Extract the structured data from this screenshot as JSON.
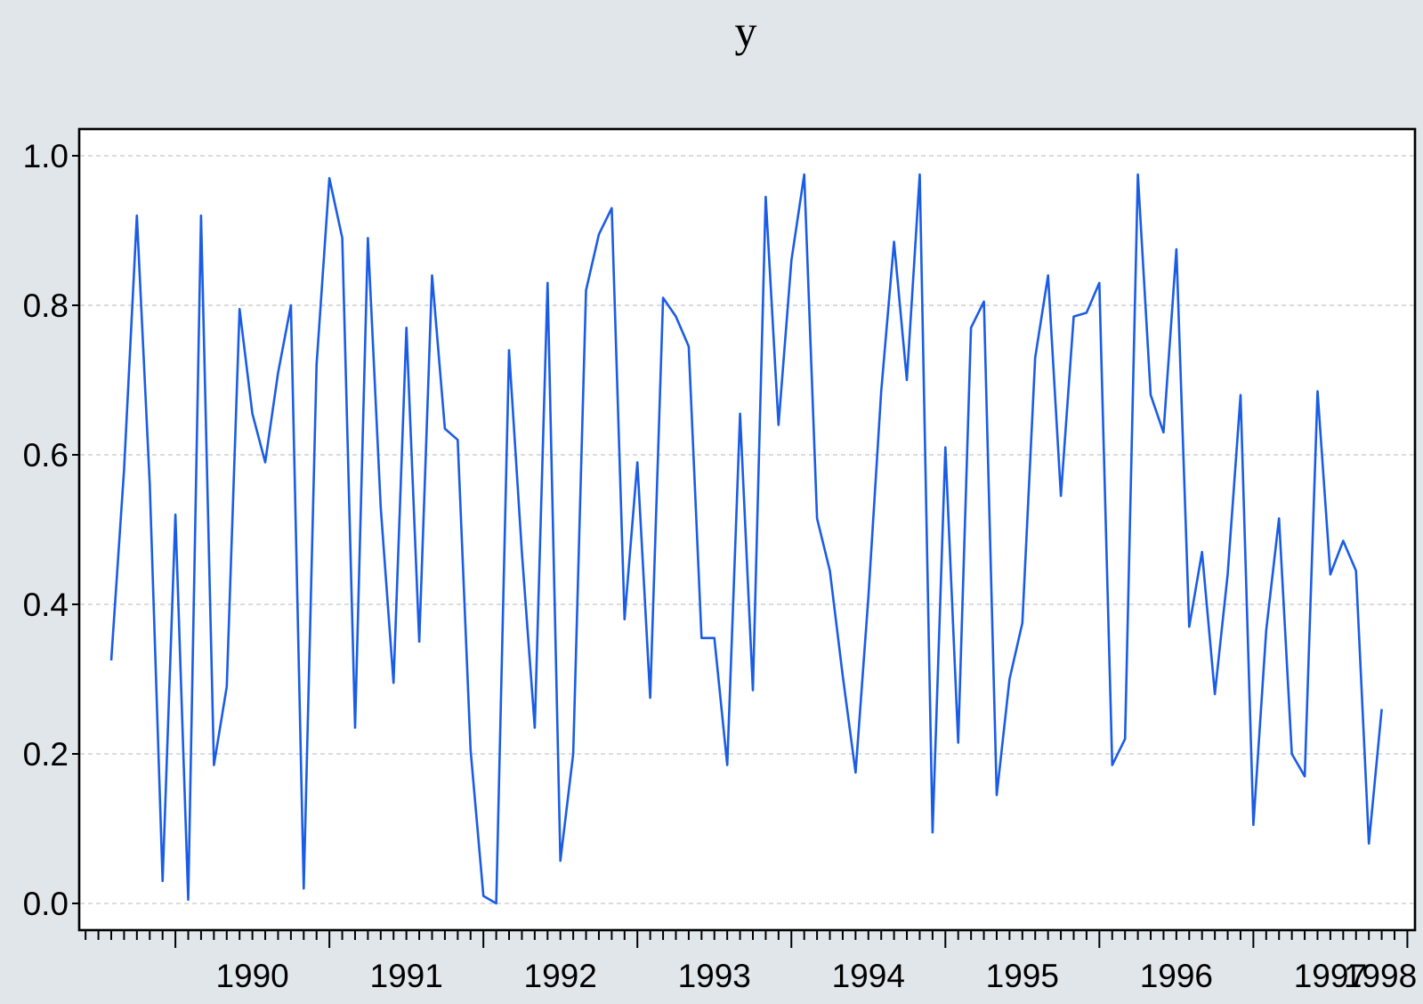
{
  "chart_data": {
    "type": "line",
    "title": "y",
    "xlabel": "",
    "ylabel": "",
    "ylim": [
      0.0,
      1.0
    ],
    "y_ticks": [
      "0.0",
      "0.2",
      "0.4",
      "0.6",
      "0.8",
      "1.0"
    ],
    "x_tick_labels": [
      "1990",
      "1991",
      "1992",
      "1993",
      "1994",
      "1995",
      "1996",
      "1997",
      "1998"
    ],
    "frequency": "monthly",
    "start": "1989-08",
    "grid": "horizontal-dashed",
    "series_color": "#1a5ce6",
    "series": [
      {
        "values": [
          0.325,
          0.58,
          0.92,
          0.56,
          0.03,
          0.52,
          0.005,
          0.92,
          0.185,
          0.29,
          0.795,
          0.655,
          0.59,
          0.71,
          0.8,
          0.02,
          0.72,
          0.97,
          0.89,
          0.235,
          0.89,
          0.53,
          0.295,
          0.77,
          0.35,
          0.84,
          0.635,
          0.62,
          0.205,
          0.01,
          0.0,
          0.74,
          0.47,
          0.235,
          0.83,
          0.057,
          0.2,
          0.82,
          0.895,
          0.93,
          0.38,
          0.59,
          0.275,
          0.81,
          0.785,
          0.745,
          0.355,
          0.355,
          0.185,
          0.655,
          0.285,
          0.945,
          0.64,
          0.86,
          0.975,
          0.515,
          0.445,
          0.305,
          0.175,
          0.41,
          0.685,
          0.885,
          0.7,
          0.975,
          0.095,
          0.61,
          0.215,
          0.77,
          0.805,
          0.145,
          0.3,
          0.375,
          0.73,
          0.84,
          0.545,
          0.785,
          0.79,
          0.83,
          0.185,
          0.22,
          0.975,
          0.68,
          0.63,
          0.875,
          0.37,
          0.47,
          0.28,
          0.44,
          0.68,
          0.105,
          0.365,
          0.515,
          0.2,
          0.17,
          0.685,
          0.44,
          0.485,
          0.445,
          0.08,
          0.26
        ]
      }
    ]
  }
}
